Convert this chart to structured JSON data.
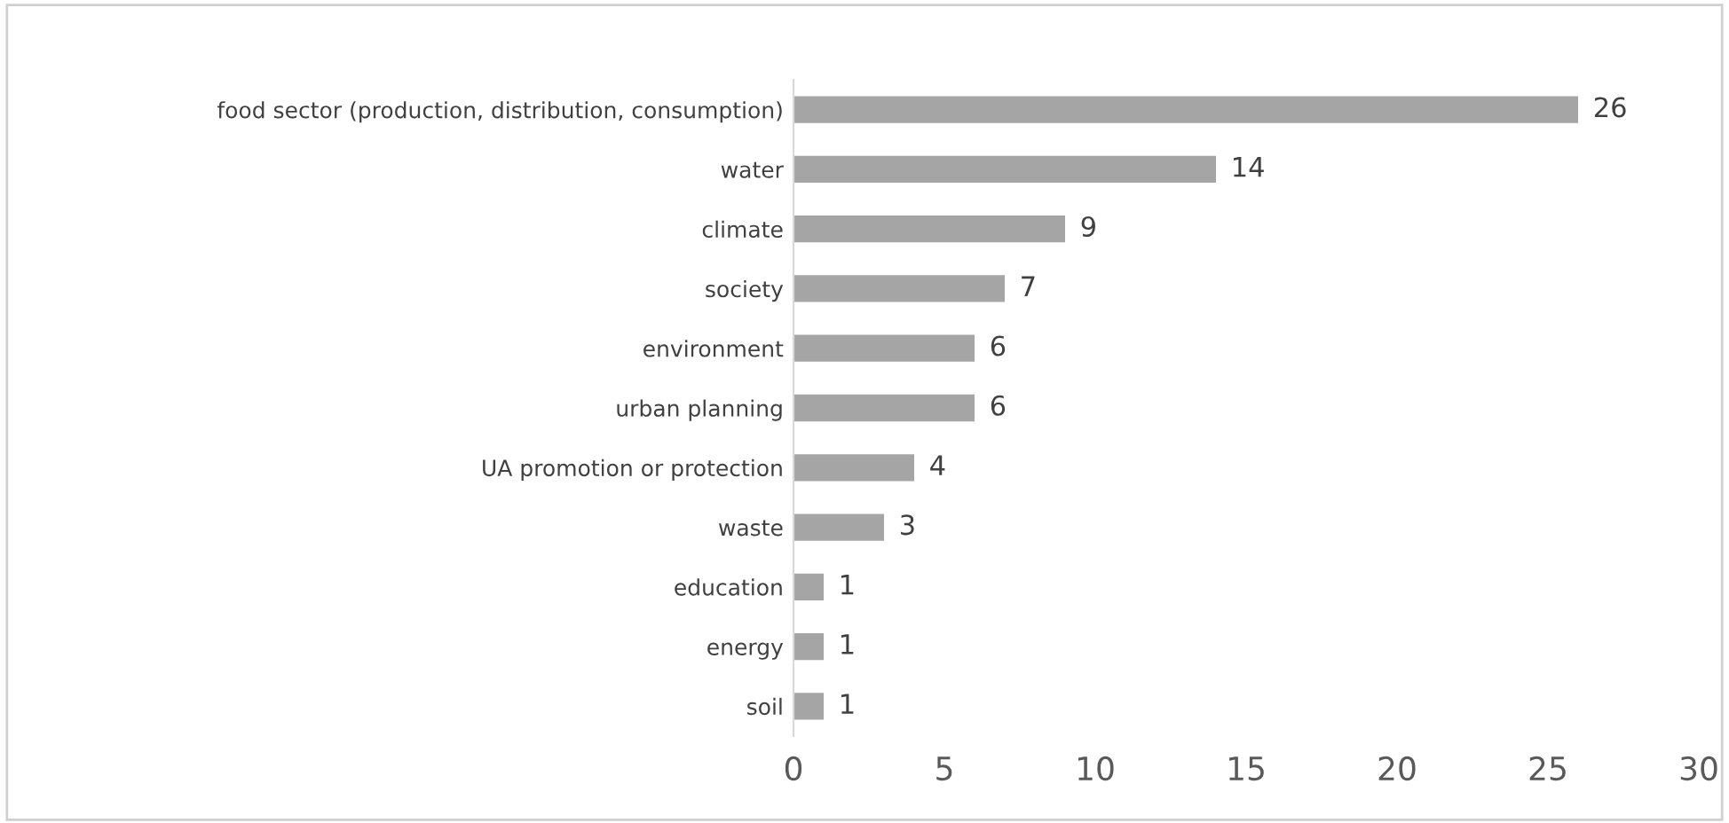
{
  "chart_data": {
    "type": "bar",
    "orientation": "horizontal",
    "categories": [
      "food sector (production, distribution, consumption)",
      "water",
      "climate",
      "society",
      "environment",
      "urban planning",
      "UA promotion or protection",
      "waste",
      "education",
      "energy",
      "soil"
    ],
    "values": [
      26,
      14,
      9,
      7,
      6,
      6,
      4,
      3,
      1,
      1,
      1
    ],
    "color": "#a5a5a5",
    "xlim": [
      0,
      30
    ],
    "xticks": [
      0,
      5,
      10,
      15,
      20,
      25,
      30
    ],
    "data_labels": true,
    "grid": false,
    "legend": false
  }
}
